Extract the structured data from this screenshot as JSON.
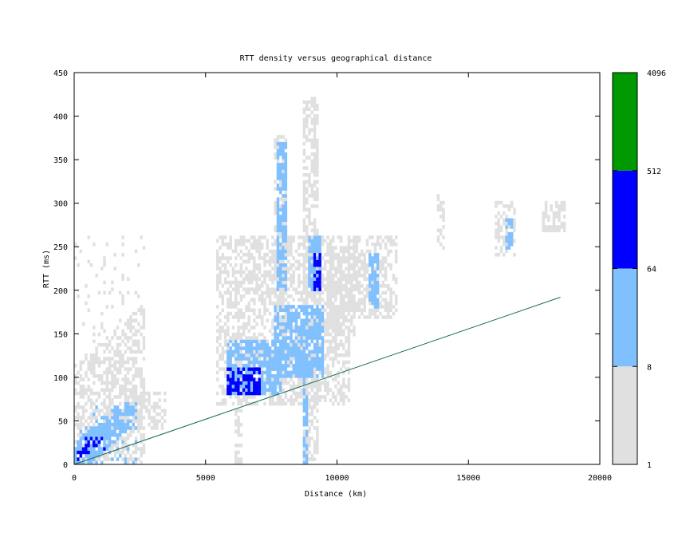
{
  "chart_data": {
    "type": "heatmap",
    "title": "RTT density versus geographical distance",
    "xlabel": "Distance (km)",
    "ylabel": "RTT (ms)",
    "xlim": [
      0,
      20000
    ],
    "ylim": [
      0,
      450
    ],
    "xticks": [
      "0",
      "5000",
      "10000",
      "15000",
      "20000"
    ],
    "yticks": [
      "0",
      "50",
      "100",
      "150",
      "200",
      "250",
      "300",
      "350",
      "400",
      "450"
    ],
    "bin_size": {
      "x_km": 100,
      "y_ms": 4
    },
    "colorbar": {
      "scale": "log2",
      "ticks": [
        "1",
        "8",
        "64",
        "512",
        "4096"
      ],
      "levels": [
        {
          "from": 1,
          "to": 8,
          "color": "#e0e0e0"
        },
        {
          "from": 8,
          "to": 64,
          "color": "#80c0ff"
        },
        {
          "from": 64,
          "to": 512,
          "color": "#0000ff"
        },
        {
          "from": 512,
          "to": 4096,
          "color": "#009900"
        }
      ]
    },
    "reference_line": {
      "color": "#1a6a4a",
      "points": [
        [
          0,
          0
        ],
        [
          18500,
          192
        ]
      ]
    },
    "density_regions": [
      {
        "x": [
          0,
          2600
        ],
        "y": [
          0,
          260
        ],
        "center": [
          0,
          0
        ],
        "slope": 0.027,
        "width": 0.42,
        "level": 1
      },
      {
        "x": [
          0,
          2300
        ],
        "y": [
          0,
          70
        ],
        "center": [
          0,
          0
        ],
        "slope": 0.027,
        "width": 0.3,
        "level": 2
      },
      {
        "x": [
          100,
          1100
        ],
        "y": [
          4,
          30
        ],
        "center": [
          0,
          0
        ],
        "slope": 0.027,
        "width": 0.25,
        "level": 3
      },
      {
        "x": [
          2000,
          3400
        ],
        "y": [
          40,
          80
        ],
        "level": 1
      },
      {
        "x": [
          5400,
          10400
        ],
        "y": [
          70,
          260
        ],
        "level": 1
      },
      {
        "x": [
          5800,
          7800
        ],
        "y": [
          80,
          140
        ],
        "level": 2
      },
      {
        "x": [
          7600,
          9400
        ],
        "y": [
          100,
          180
        ],
        "level": 2
      },
      {
        "x": [
          5800,
          7000
        ],
        "y": [
          80,
          110
        ],
        "level": 3
      },
      {
        "x": [
          7600,
          8000
        ],
        "y": [
          160,
          380
        ],
        "level": 1
      },
      {
        "x": [
          7700,
          8000
        ],
        "y": [
          200,
          370
        ],
        "level": 2
      },
      {
        "x": [
          8700,
          9200
        ],
        "y": [
          160,
          420
        ],
        "level": 1
      },
      {
        "x": [
          8900,
          9300
        ],
        "y": [
          200,
          260
        ],
        "level": 2
      },
      {
        "x": [
          9100,
          9300
        ],
        "y": [
          200,
          240
        ],
        "level": 3
      },
      {
        "x": [
          9600,
          10600
        ],
        "y": [
          150,
          250
        ],
        "level": 1
      },
      {
        "x": [
          10400,
          12200
        ],
        "y": [
          170,
          260
        ],
        "level": 1
      },
      {
        "x": [
          11200,
          11500
        ],
        "y": [
          180,
          240
        ],
        "level": 2
      },
      {
        "x": [
          13800,
          14000
        ],
        "y": [
          250,
          310
        ],
        "level": 1
      },
      {
        "x": [
          16000,
          16700
        ],
        "y": [
          240,
          300
        ],
        "level": 1
      },
      {
        "x": [
          16400,
          16600
        ],
        "y": [
          250,
          280
        ],
        "level": 2
      },
      {
        "x": [
          17800,
          18600
        ],
        "y": [
          270,
          300
        ],
        "level": 1
      },
      {
        "x": [
          8700,
          8800
        ],
        "y": [
          0,
          120
        ],
        "level": 2
      },
      {
        "x": [
          6100,
          6300
        ],
        "y": [
          0,
          150
        ],
        "level": 1
      },
      {
        "x": [
          8700,
          9200
        ],
        "y": [
          0,
          100
        ],
        "level": 1
      }
    ]
  }
}
